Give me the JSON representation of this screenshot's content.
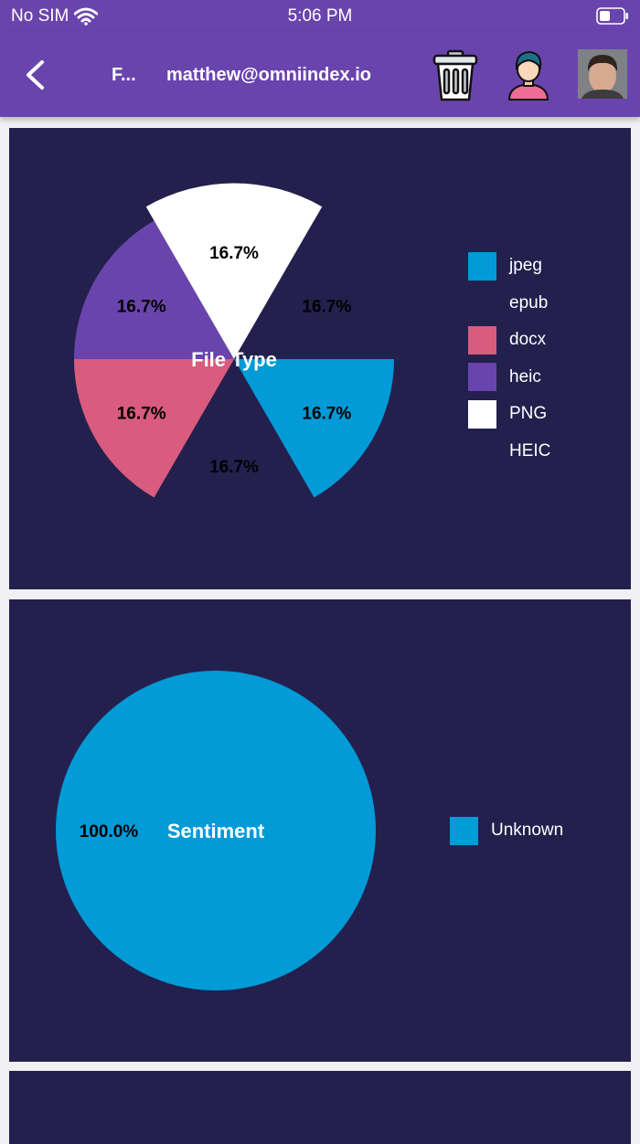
{
  "status_bar": {
    "carrier": "No SIM",
    "time": "5:06 PM"
  },
  "nav": {
    "short_title": "F...",
    "email": "matthew@omniindex.io"
  },
  "colors": {
    "header": "#6a44ad",
    "card_bg": "#23204d",
    "jpeg": "#029ad7",
    "docx": "#d95b7d",
    "heic": "#6a44ad",
    "PNG": "#ffffff"
  },
  "icons": {
    "back": "chevron-left-icon",
    "trash": "trash-can-icon",
    "user": "user-profile-icon",
    "avatar": "profile-photo"
  },
  "chart_data": [
    {
      "type": "pie",
      "title": "File Type",
      "categories": [
        "jpeg",
        "epub",
        "docx",
        "heic",
        "PNG",
        "HEIC"
      ],
      "values": [
        1,
        1,
        1,
        1,
        1,
        1
      ],
      "colors": [
        "#029ad7",
        "#23204d",
        "#d95b7d",
        "#6a44ad",
        "#ffffff",
        "#23204d"
      ],
      "value_labels": [
        "16.7%",
        "16.7%",
        "16.7%",
        "16.7%",
        "16.7%",
        "16.7%"
      ],
      "slice_radius_scale": [
        1,
        1,
        1,
        1,
        1.1,
        1
      ],
      "legend": "right"
    },
    {
      "type": "pie",
      "title": "Sentiment",
      "categories": [
        "Unknown"
      ],
      "values": [
        1
      ],
      "colors": [
        "#029ad7"
      ],
      "value_labels": [
        "100.0%"
      ],
      "legend": "right"
    }
  ]
}
